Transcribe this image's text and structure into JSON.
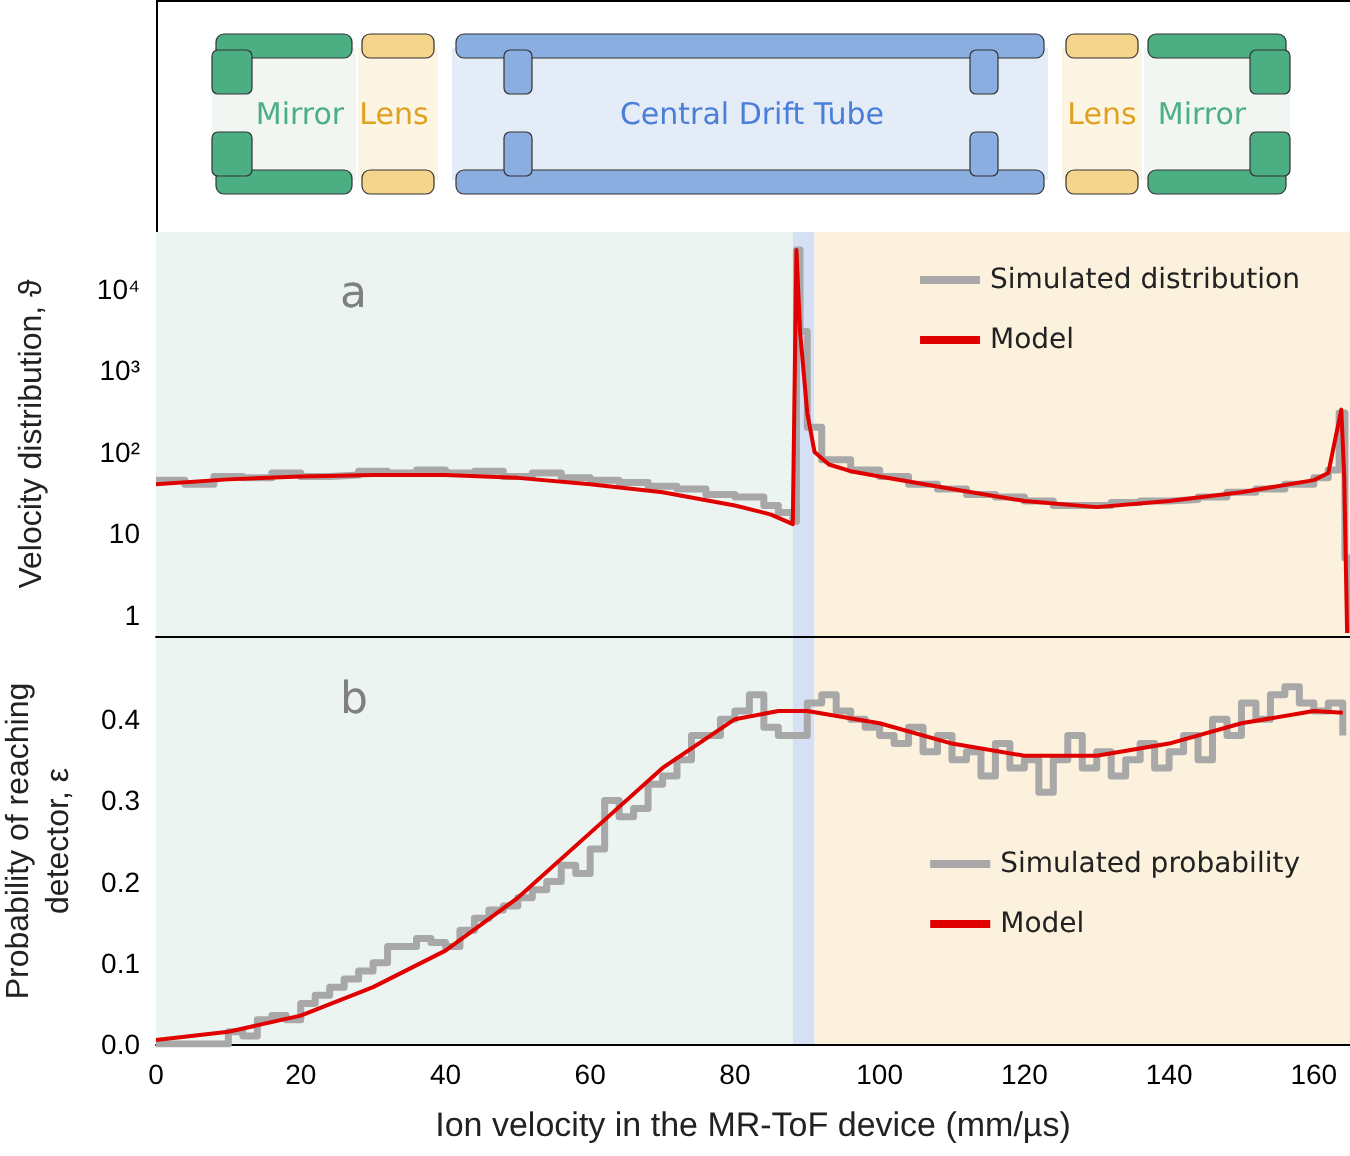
{
  "chart_data": [
    {
      "type": "other",
      "annotations": [
        "Mirror",
        "Lens",
        "Central Drift Tube",
        "Lens",
        "Mirror"
      ]
    },
    {
      "type": "step",
      "ylabel": "Velocity distribution, ϑ",
      "annotations": [
        "a"
      ],
      "log": "y",
      "legend": "top right",
      "tick_labels": "y",
      "grid": false,
      "xlim": [
        0,
        165
      ],
      "xticks": [
        0,
        20,
        40,
        60,
        80,
        100,
        120,
        140,
        160
      ],
      "ylim": [
        0.55,
        50000
      ],
      "yticks": [
        1,
        10,
        {
          "value": 100,
          "label": "10²"
        },
        {
          "value": 1000,
          "label": "10³"
        },
        {
          "value": 10000,
          "label": "10⁴"
        }
      ],
      "bands": [
        {
          "axis": "x",
          "from": 0,
          "to": 88,
          "color": "#ebf4f0"
        },
        {
          "axis": "x",
          "from": 88,
          "to": 91,
          "color": "#d5e0f5"
        },
        {
          "axis": "x",
          "from": 91,
          "to": 165,
          "color": "#fbf1dc"
        }
      ],
      "series": [
        {
          "name": "Simulated distribution",
          "type": "step",
          "color": "#a8a8a8",
          "x": [
            0,
            4,
            8,
            12,
            16,
            20,
            24,
            28,
            32,
            36,
            40,
            44,
            48,
            52,
            56,
            60,
            64,
            68,
            72,
            76,
            80,
            84,
            86,
            88,
            88.5,
            89,
            90,
            92,
            96,
            100,
            104,
            108,
            112,
            116,
            120,
            124,
            128,
            132,
            136,
            140,
            144,
            148,
            152,
            156,
            160,
            162,
            163.5,
            164.3,
            165
          ],
          "values": [
            45,
            40,
            50,
            48,
            55,
            50,
            52,
            58,
            55,
            60,
            55,
            58,
            50,
            55,
            48,
            45,
            42,
            38,
            35,
            30,
            28,
            22,
            18,
            14,
            30000,
            3000,
            200,
            80,
            60,
            50,
            40,
            35,
            30,
            28,
            25,
            22,
            22,
            24,
            25,
            26,
            28,
            32,
            35,
            40,
            48,
            60,
            300,
            5,
            0.6
          ]
        },
        {
          "name": "Model",
          "type": "line",
          "color": "#e00000",
          "x": [
            0,
            10,
            20,
            30,
            40,
            50,
            60,
            70,
            80,
            85,
            88,
            88.5,
            89,
            90,
            91,
            93,
            96,
            100,
            110,
            120,
            130,
            140,
            150,
            160,
            162,
            163,
            163.8,
            164.2,
            164.6
          ],
          "values": [
            40,
            46,
            50,
            52,
            52,
            48,
            40,
            32,
            22,
            17,
            13,
            30000,
            3000,
            300,
            100,
            70,
            58,
            50,
            35,
            25,
            21,
            25,
            32,
            45,
            55,
            150,
            330,
            50,
            0.6
          ]
        }
      ]
    },
    {
      "type": "step",
      "xlabel": "Ion velocity in the MR-ToF device (mm/µs)",
      "ylabel": "Probability of reaching\ndetector, ε",
      "annotations": [
        "b"
      ],
      "legend": "bottom right",
      "grid": false,
      "xlim": [
        0,
        165
      ],
      "xticks": [
        0,
        20,
        40,
        60,
        80,
        100,
        120,
        140,
        160
      ],
      "ylim": [
        0,
        0.5
      ],
      "yticks": [
        {
          "value": 0,
          "label": "0.0"
        },
        0.1,
        0.2,
        0.3,
        0.4
      ],
      "bands": [
        {
          "axis": "x",
          "from": 0,
          "to": 88,
          "color": "#ebf4f0"
        },
        {
          "axis": "x",
          "from": 88,
          "to": 91,
          "color": "#d5e0f5"
        },
        {
          "axis": "x",
          "from": 91,
          "to": 165,
          "color": "#fbf1dc"
        }
      ],
      "series": [
        {
          "name": "Simulated probability",
          "type": "step",
          "color": "#a8a8a8",
          "x": [
            0,
            2,
            4,
            6,
            8,
            10,
            12,
            14,
            16,
            18,
            20,
            22,
            24,
            26,
            28,
            30,
            32,
            34,
            36,
            38,
            40,
            42,
            44,
            46,
            48,
            50,
            52,
            54,
            56,
            58,
            60,
            62,
            64,
            66,
            68,
            70,
            72,
            74,
            76,
            78,
            80,
            82,
            84,
            86,
            88,
            90,
            92,
            94,
            96,
            98,
            100,
            102,
            104,
            106,
            108,
            110,
            112,
            114,
            116,
            118,
            120,
            122,
            124,
            126,
            128,
            130,
            132,
            134,
            136,
            138,
            140,
            142,
            144,
            146,
            148,
            150,
            152,
            154,
            156,
            158,
            160,
            162,
            164
          ],
          "values": [
            0,
            0,
            0,
            0,
            0,
            0.015,
            0.01,
            0.03,
            0.035,
            0.03,
            0.05,
            0.06,
            0.07,
            0.08,
            0.09,
            0.1,
            0.12,
            0.12,
            0.13,
            0.125,
            0.12,
            0.14,
            0.155,
            0.165,
            0.17,
            0.18,
            0.19,
            0.2,
            0.22,
            0.21,
            0.24,
            0.3,
            0.28,
            0.29,
            0.32,
            0.33,
            0.35,
            0.38,
            0.38,
            0.4,
            0.41,
            0.43,
            0.39,
            0.38,
            0.38,
            0.42,
            0.43,
            0.41,
            0.4,
            0.39,
            0.38,
            0.37,
            0.39,
            0.36,
            0.38,
            0.35,
            0.36,
            0.33,
            0.37,
            0.34,
            0.35,
            0.31,
            0.35,
            0.38,
            0.34,
            0.36,
            0.33,
            0.35,
            0.37,
            0.34,
            0.36,
            0.38,
            0.35,
            0.4,
            0.38,
            0.42,
            0.4,
            0.43,
            0.44,
            0.42,
            0.41,
            0.42,
            0.38
          ]
        },
        {
          "name": "Model",
          "type": "line",
          "color": "#e00000",
          "x": [
            0,
            10,
            20,
            30,
            40,
            50,
            60,
            70,
            80,
            86,
            90,
            100,
            110,
            120,
            130,
            140,
            150,
            160,
            164
          ],
          "values": [
            0.005,
            0.015,
            0.035,
            0.07,
            0.115,
            0.18,
            0.26,
            0.34,
            0.4,
            0.41,
            0.41,
            0.395,
            0.37,
            0.355,
            0.355,
            0.37,
            0.395,
            0.41,
            0.408
          ]
        }
      ]
    }
  ]
}
